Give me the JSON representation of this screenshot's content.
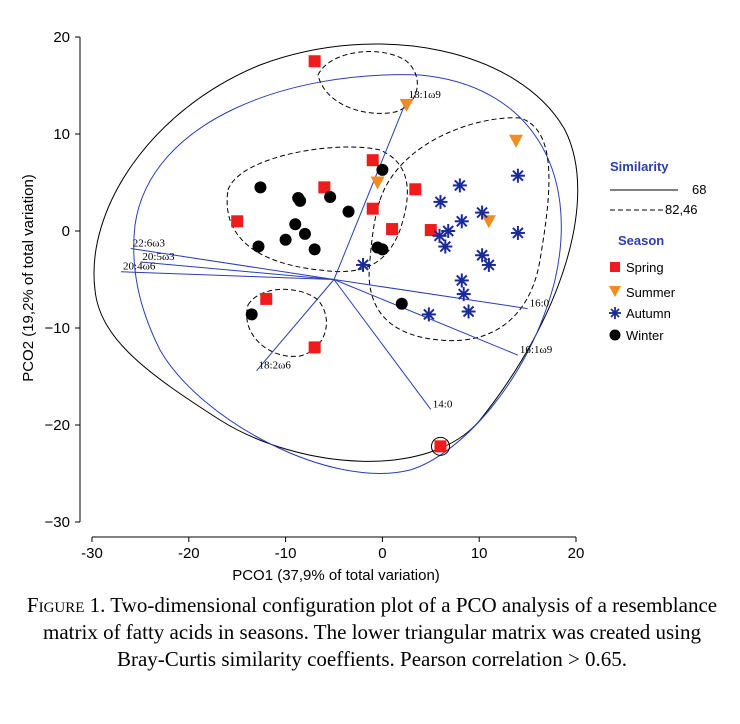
{
  "chart_data": {
    "type": "scatter",
    "xlabel": "PCO1 (37,9% of total variation)",
    "ylabel": "PCO2 (19,2% of total variation)",
    "xlim": [
      -30,
      20
    ],
    "ylim": [
      -30,
      20
    ],
    "x_ticks": [
      "-30",
      "-20",
      "-10",
      "0",
      "10",
      "20"
    ],
    "y_ticks": [
      "20",
      "10",
      "0",
      "−10",
      "−20",
      "−30"
    ],
    "legend_position": "right",
    "similarity_legend": {
      "title": "Similarity",
      "items": [
        {
          "label": "68",
          "style": "solid"
        },
        {
          "label": "82,46",
          "style": "dashed"
        }
      ]
    },
    "series": [
      {
        "name": "Spring",
        "marker": "square",
        "color": "#ee1c1c",
        "points": [
          [
            -7,
            17.5
          ],
          [
            -15,
            1
          ],
          [
            -6,
            4.5
          ],
          [
            -1,
            7.3
          ],
          [
            -1,
            2.3
          ],
          [
            1,
            0.2
          ],
          [
            3.4,
            4.3
          ],
          [
            5,
            0.1
          ],
          [
            -12,
            -7
          ],
          [
            -7,
            -12
          ],
          [
            6,
            -22.2
          ]
        ]
      },
      {
        "name": "Summer",
        "marker": "triangle-down",
        "color": "#f28c1e",
        "points": [
          [
            2.5,
            13
          ],
          [
            -0.5,
            5
          ],
          [
            11,
            1
          ],
          [
            13.8,
            9.3
          ]
        ]
      },
      {
        "name": "Autumn",
        "marker": "asterisk",
        "color": "#1a2b99",
        "points": [
          [
            -2,
            -3.5
          ],
          [
            6,
            3
          ],
          [
            8,
            4.7
          ],
          [
            14,
            5.7
          ],
          [
            5.9,
            -0.5
          ],
          [
            6.8,
            0
          ],
          [
            8.2,
            1
          ],
          [
            10.3,
            1.9
          ],
          [
            6.5,
            -1.6
          ],
          [
            14,
            -0.2
          ],
          [
            10.3,
            -2.5
          ],
          [
            11,
            -3.5
          ],
          [
            8.2,
            -5.1
          ],
          [
            8.4,
            -6.5
          ],
          [
            4.8,
            -8.6
          ],
          [
            8.9,
            -8.3
          ]
        ]
      },
      {
        "name": "Winter",
        "marker": "circle",
        "color": "#000000",
        "points": [
          [
            -12.6,
            4.5
          ],
          [
            -8.7,
            3.4
          ],
          [
            -8.5,
            3.1
          ],
          [
            -5.4,
            3.5
          ],
          [
            -3.5,
            2
          ],
          [
            0,
            6.3
          ],
          [
            -9,
            0.7
          ],
          [
            -8,
            -0.3
          ],
          [
            -10,
            -0.9
          ],
          [
            -12.8,
            -1.6
          ],
          [
            -7,
            -1.9
          ],
          [
            -0.5,
            -1.7
          ],
          [
            0,
            -1.9
          ],
          [
            2,
            -7.5
          ],
          [
            -13.5,
            -8.6
          ]
        ]
      }
    ],
    "vectors": [
      {
        "label": "18:1ω9",
        "end": [
          2.5,
          13.5
        ]
      },
      {
        "label": "22:6ω3",
        "end": [
          -26,
          -1.8
        ]
      },
      {
        "label": "20:5ω3",
        "end": [
          -25,
          -3.2
        ]
      },
      {
        "label": "20:4ω6",
        "end": [
          -27,
          -4.2
        ]
      },
      {
        "label": "16:0",
        "end": [
          15,
          -8
        ]
      },
      {
        "label": "16:1ω9",
        "end": [
          14,
          -12.8
        ]
      },
      {
        "label": "18:2ω6",
        "end": [
          -13,
          -14.4
        ]
      },
      {
        "label": "14:0",
        "end": [
          5,
          -18.4
        ]
      }
    ]
  },
  "legend": {
    "season_title": "Season"
  },
  "caption": {
    "fig_label": "Figure 1.",
    "text": "Two-dimensional configuration plot of a PCO analysis of a resemblance matrix of fatty acids in seasons. The lower triangular matrix was created using Bray-Curtis similarity coeffients. Pearson correlation > 0.65."
  }
}
